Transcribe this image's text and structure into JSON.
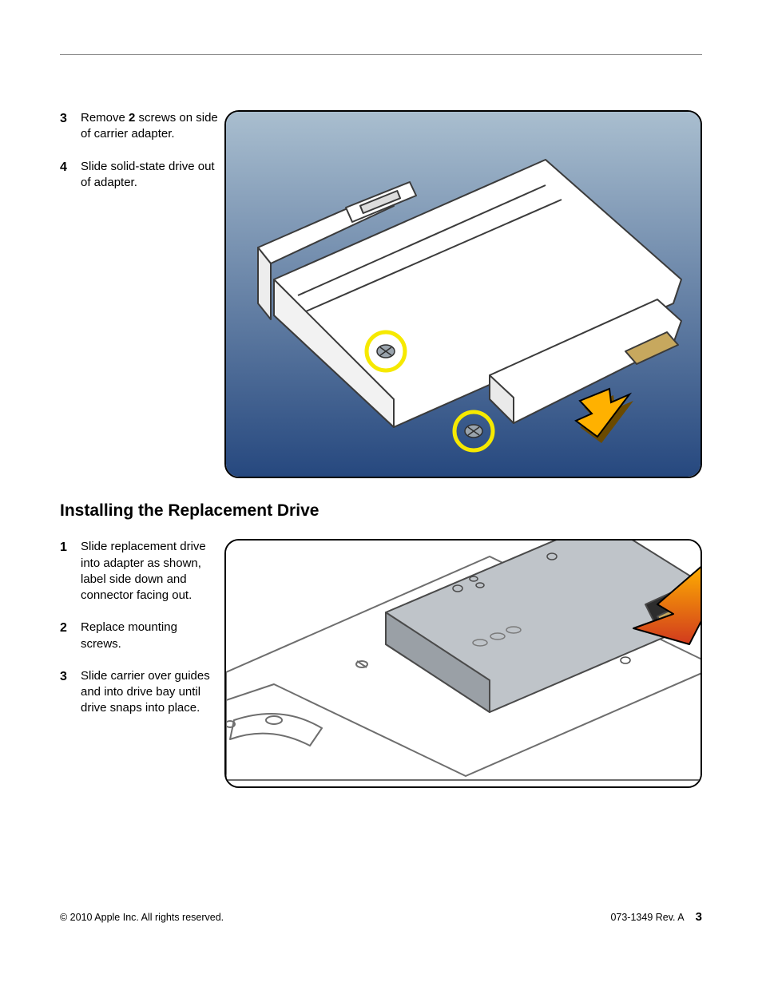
{
  "removal": {
    "steps": [
      {
        "num": "3",
        "text_pre": "Remove ",
        "bold": "2",
        "text_post": " screws on side of carrier adapter."
      },
      {
        "num": "4",
        "text_pre": "Slide solid-state drive out of adapter.",
        "bold": "",
        "text_post": ""
      }
    ]
  },
  "install": {
    "heading": "Installing the Replacement Drive",
    "steps": [
      {
        "num": "1",
        "text": "Slide replacement drive into adapter as shown, label side down and connector facing out."
      },
      {
        "num": "2",
        "text": "Replace mounting screws."
      },
      {
        "num": "3",
        "text": "Slide carrier over guides and into drive bay until drive snaps into place."
      }
    ]
  },
  "figure1": {
    "type": "diagram",
    "background": {
      "top": "#a9becf",
      "bottom": "#25477e"
    },
    "drive_fill": "#ffffff",
    "drive_stroke": "#3b3b3b",
    "screw_circle": {
      "stroke": "#f6e900",
      "stroke_width": 5,
      "fill": "none",
      "r": 24
    },
    "screw": {
      "fill": "#9aa4ad",
      "stroke": "#2f2f2f"
    },
    "arrow": {
      "fill": "#ffb100",
      "stroke": "#000000",
      "shadow": "#6b4a00"
    },
    "connector": {
      "fill": "#c7a85e",
      "stroke": "#3a3a3a"
    }
  },
  "figure2": {
    "type": "diagram",
    "background": "#ffffff",
    "adapter_fill": "#ffffff",
    "adapter_stroke": "#6e6e6e",
    "ssd_fill": "#bfc4c9",
    "ssd_stroke": "#4a4a4a",
    "arrow": {
      "fill_top": "#ffb100",
      "fill_bot": "#d13a1e",
      "stroke": "#000000"
    },
    "hole_stroke": "#5a5a5a"
  },
  "footer": {
    "copyright": "© 2010 Apple Inc. All rights reserved.",
    "docnum": "073-1349 Rev. A",
    "page": "3"
  }
}
